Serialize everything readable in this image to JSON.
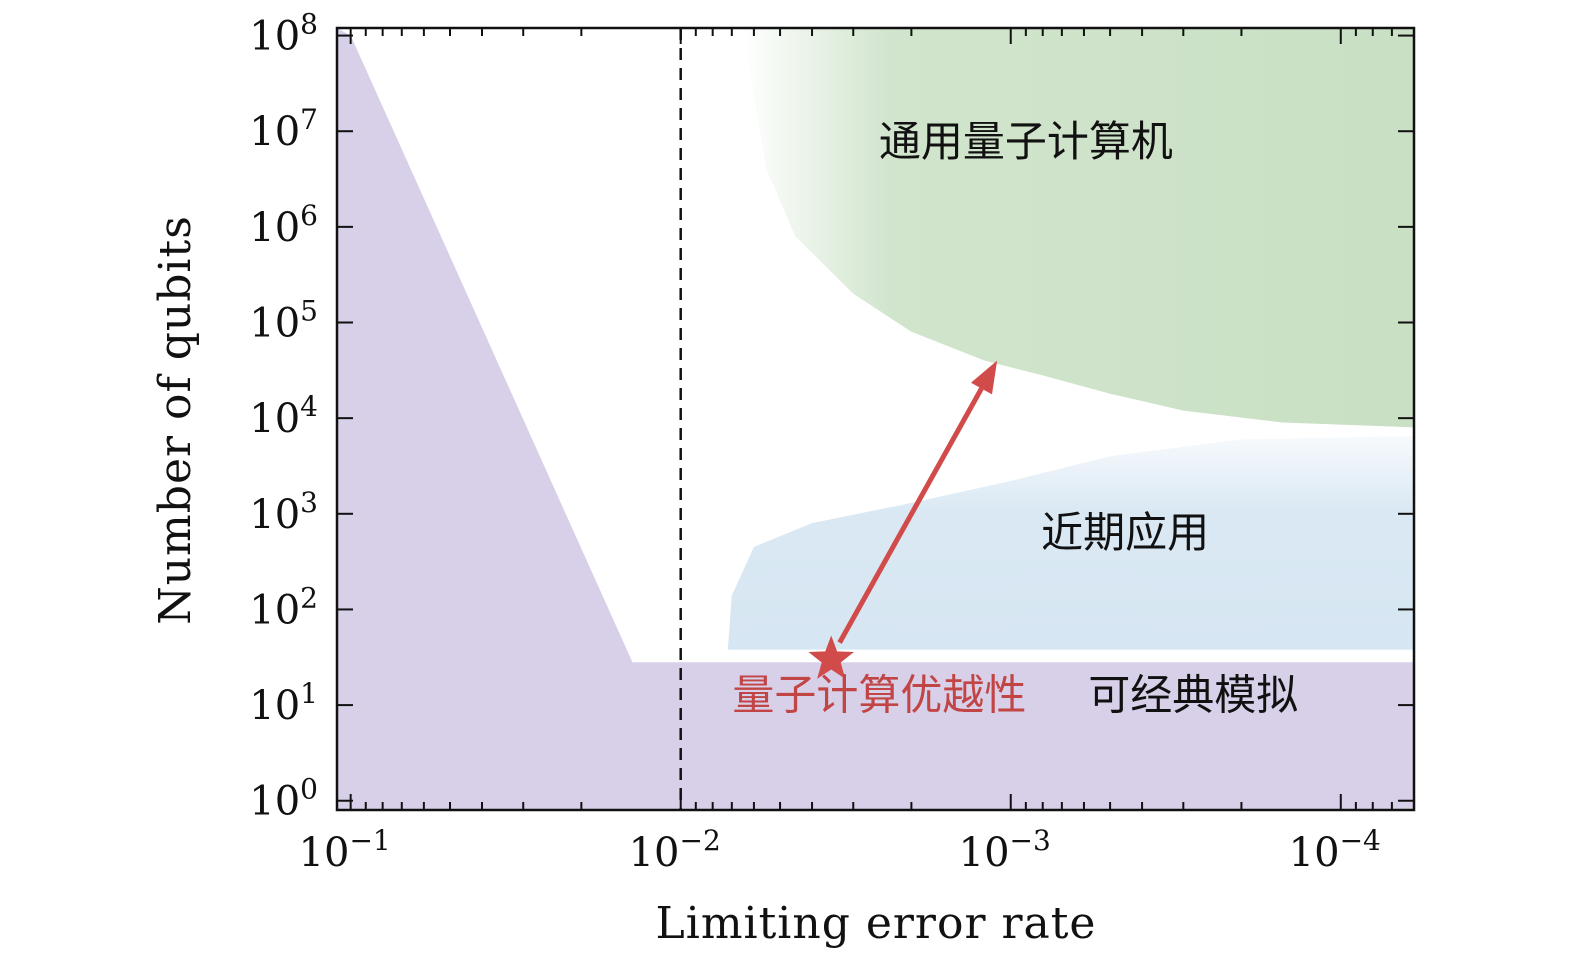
{
  "chart_data": {
    "type": "area",
    "xlabel": "Limiting error rate",
    "ylabel": "Number of qubits",
    "x_scale": "log",
    "x_reversed": true,
    "y_scale": "log",
    "xlim": [
      0.11,
      6e-05
    ],
    "ylim": [
      0.8,
      120000000.0
    ],
    "x_ticks": [
      {
        "value": 0.1,
        "base": "10",
        "exp": "−1"
      },
      {
        "value": 0.01,
        "base": "10",
        "exp": "−2"
      },
      {
        "value": 0.001,
        "base": "10",
        "exp": "−3"
      },
      {
        "value": 0.0001,
        "base": "10",
        "exp": "−4"
      }
    ],
    "y_ticks": [
      {
        "value": 1,
        "base": "10",
        "exp": "0"
      },
      {
        "value": 10,
        "base": "10",
        "exp": "1"
      },
      {
        "value": 100,
        "base": "10",
        "exp": "2"
      },
      {
        "value": 1000,
        "base": "10",
        "exp": "3"
      },
      {
        "value": 10000,
        "base": "10",
        "exp": "4"
      },
      {
        "value": 100000,
        "base": "10",
        "exp": "5"
      },
      {
        "value": 1000000,
        "base": "10",
        "exp": "6"
      },
      {
        "value": 10000000,
        "base": "10",
        "exp": "7"
      },
      {
        "value": 100000000,
        "base": "10",
        "exp": "8"
      }
    ],
    "threshold_line": {
      "x": 0.01,
      "style": "dashed"
    },
    "regions": [
      {
        "label": "可经典模拟",
        "color": "#d8d0e8",
        "boundary": [
          [
            0.11,
            120000000.0
          ],
          [
            0.1,
            100000000.0
          ],
          [
            0.014,
            28
          ],
          [
            6e-05,
            28
          ]
        ]
      },
      {
        "label": "近期应用",
        "color": "#d6e6f2",
        "boundary": [
          [
            0.0072,
            38
          ],
          [
            0.007,
            140
          ],
          [
            0.006,
            450
          ],
          [
            0.004,
            800
          ],
          [
            0.002,
            1300
          ],
          [
            0.001,
            2200
          ],
          [
            0.0005,
            4000
          ],
          [
            0.0002,
            6000
          ],
          [
            6e-05,
            6500
          ]
        ]
      },
      {
        "label": "通用量子计算机",
        "color": "#c9e0c4",
        "boundary": [
          [
            0.0065,
            120000000.0
          ],
          [
            0.0055,
            4000000.0
          ],
          [
            0.0045,
            800000.0
          ],
          [
            0.003,
            200000.0
          ],
          [
            0.002,
            80000.0
          ],
          [
            0.0012,
            40000.0
          ],
          [
            0.0008,
            28000.0
          ],
          [
            0.0005,
            18000.0
          ],
          [
            0.0003,
            12000.0
          ],
          [
            0.00015,
            9000
          ],
          [
            6e-05,
            8000
          ]
        ]
      }
    ],
    "annotations": [
      {
        "type": "star",
        "label": "量子计算优越性",
        "x": 0.0035,
        "y": 30,
        "color": "#d24b4b"
      },
      {
        "type": "arrow",
        "from": [
          0.0033,
          45
        ],
        "to": [
          0.0011,
          40000
        ],
        "color": "#d24b4b"
      }
    ],
    "region_labels": [
      {
        "text": "通用量子计算机",
        "x": 0.0009,
        "y": 5500000.0,
        "color": "#111111"
      },
      {
        "text": "近期应用",
        "x": 0.00045,
        "y": 450,
        "color": "#111111"
      },
      {
        "text": "可经典模拟",
        "x": 0.00028,
        "y": 9,
        "color": "#111111"
      },
      {
        "text": "量子计算优越性",
        "x": 0.0025,
        "y": 9,
        "color": "#c24545"
      }
    ]
  }
}
